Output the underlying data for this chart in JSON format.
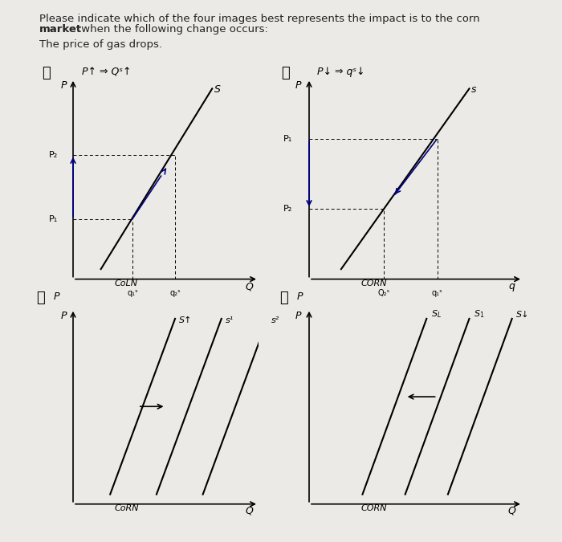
{
  "bg_color": "#eceae6",
  "title_line1": "Please indicate which of the four images best represents the impact is to the corn",
  "title_bold": "market",
  "title_line2_rest": " when the following change occurs:",
  "subtitle": "The price of gas drops.",
  "panel_A_header": "P↑ ⇒ Qˢ↑",
  "panel_B_header": "P↓ ⇒ qˢ↓",
  "corn_label": "CORN",
  "coln_label": "CoLN"
}
